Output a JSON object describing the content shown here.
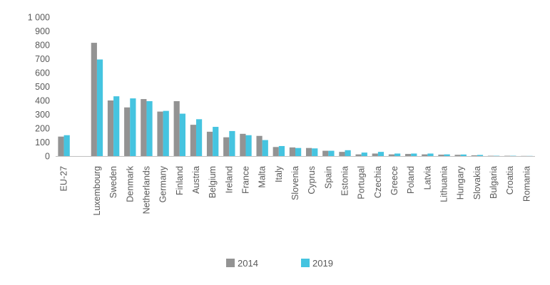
{
  "chart_data": {
    "type": "bar",
    "categories": [
      "EU-27",
      "",
      "Luxembourg",
      "Sweden",
      "Denmark",
      "Netherlands",
      "Germany",
      "Finland",
      "Austria",
      "Belgium",
      "Ireland",
      "France",
      "Malta",
      "Italy",
      "Slovenia",
      "Cyprus",
      "Spain",
      "Estonia",
      "Portugal",
      "Czechia",
      "Greece",
      "Poland",
      "Latvia",
      "Lithuania",
      "Hungary",
      "Slovakia",
      "Bulgaria",
      "Croatia",
      "Romania"
    ],
    "series": [
      {
        "name": "2014",
        "color": "#939393",
        "values": [
          140,
          null,
          815,
          400,
          350,
          410,
          320,
          395,
          225,
          175,
          135,
          160,
          145,
          65,
          62,
          58,
          38,
          30,
          12,
          18,
          12,
          15,
          12,
          10,
          9,
          5,
          2,
          2,
          1
        ]
      },
      {
        "name": "2019",
        "color": "#45c4e0",
        "values": [
          150,
          null,
          695,
          430,
          415,
          395,
          325,
          305,
          265,
          210,
          180,
          150,
          115,
          72,
          58,
          55,
          38,
          42,
          25,
          30,
          18,
          18,
          18,
          12,
          11,
          8,
          2,
          2,
          1
        ]
      }
    ],
    "yticks": [
      "0",
      "100",
      "200",
      "300",
      "400",
      "500",
      "600",
      "700",
      "800",
      "900",
      "1 000"
    ],
    "ylim": [
      0,
      1000
    ],
    "title": "",
    "xlabel": "",
    "ylabel": "",
    "grid": false,
    "legend_position": "bottom"
  }
}
